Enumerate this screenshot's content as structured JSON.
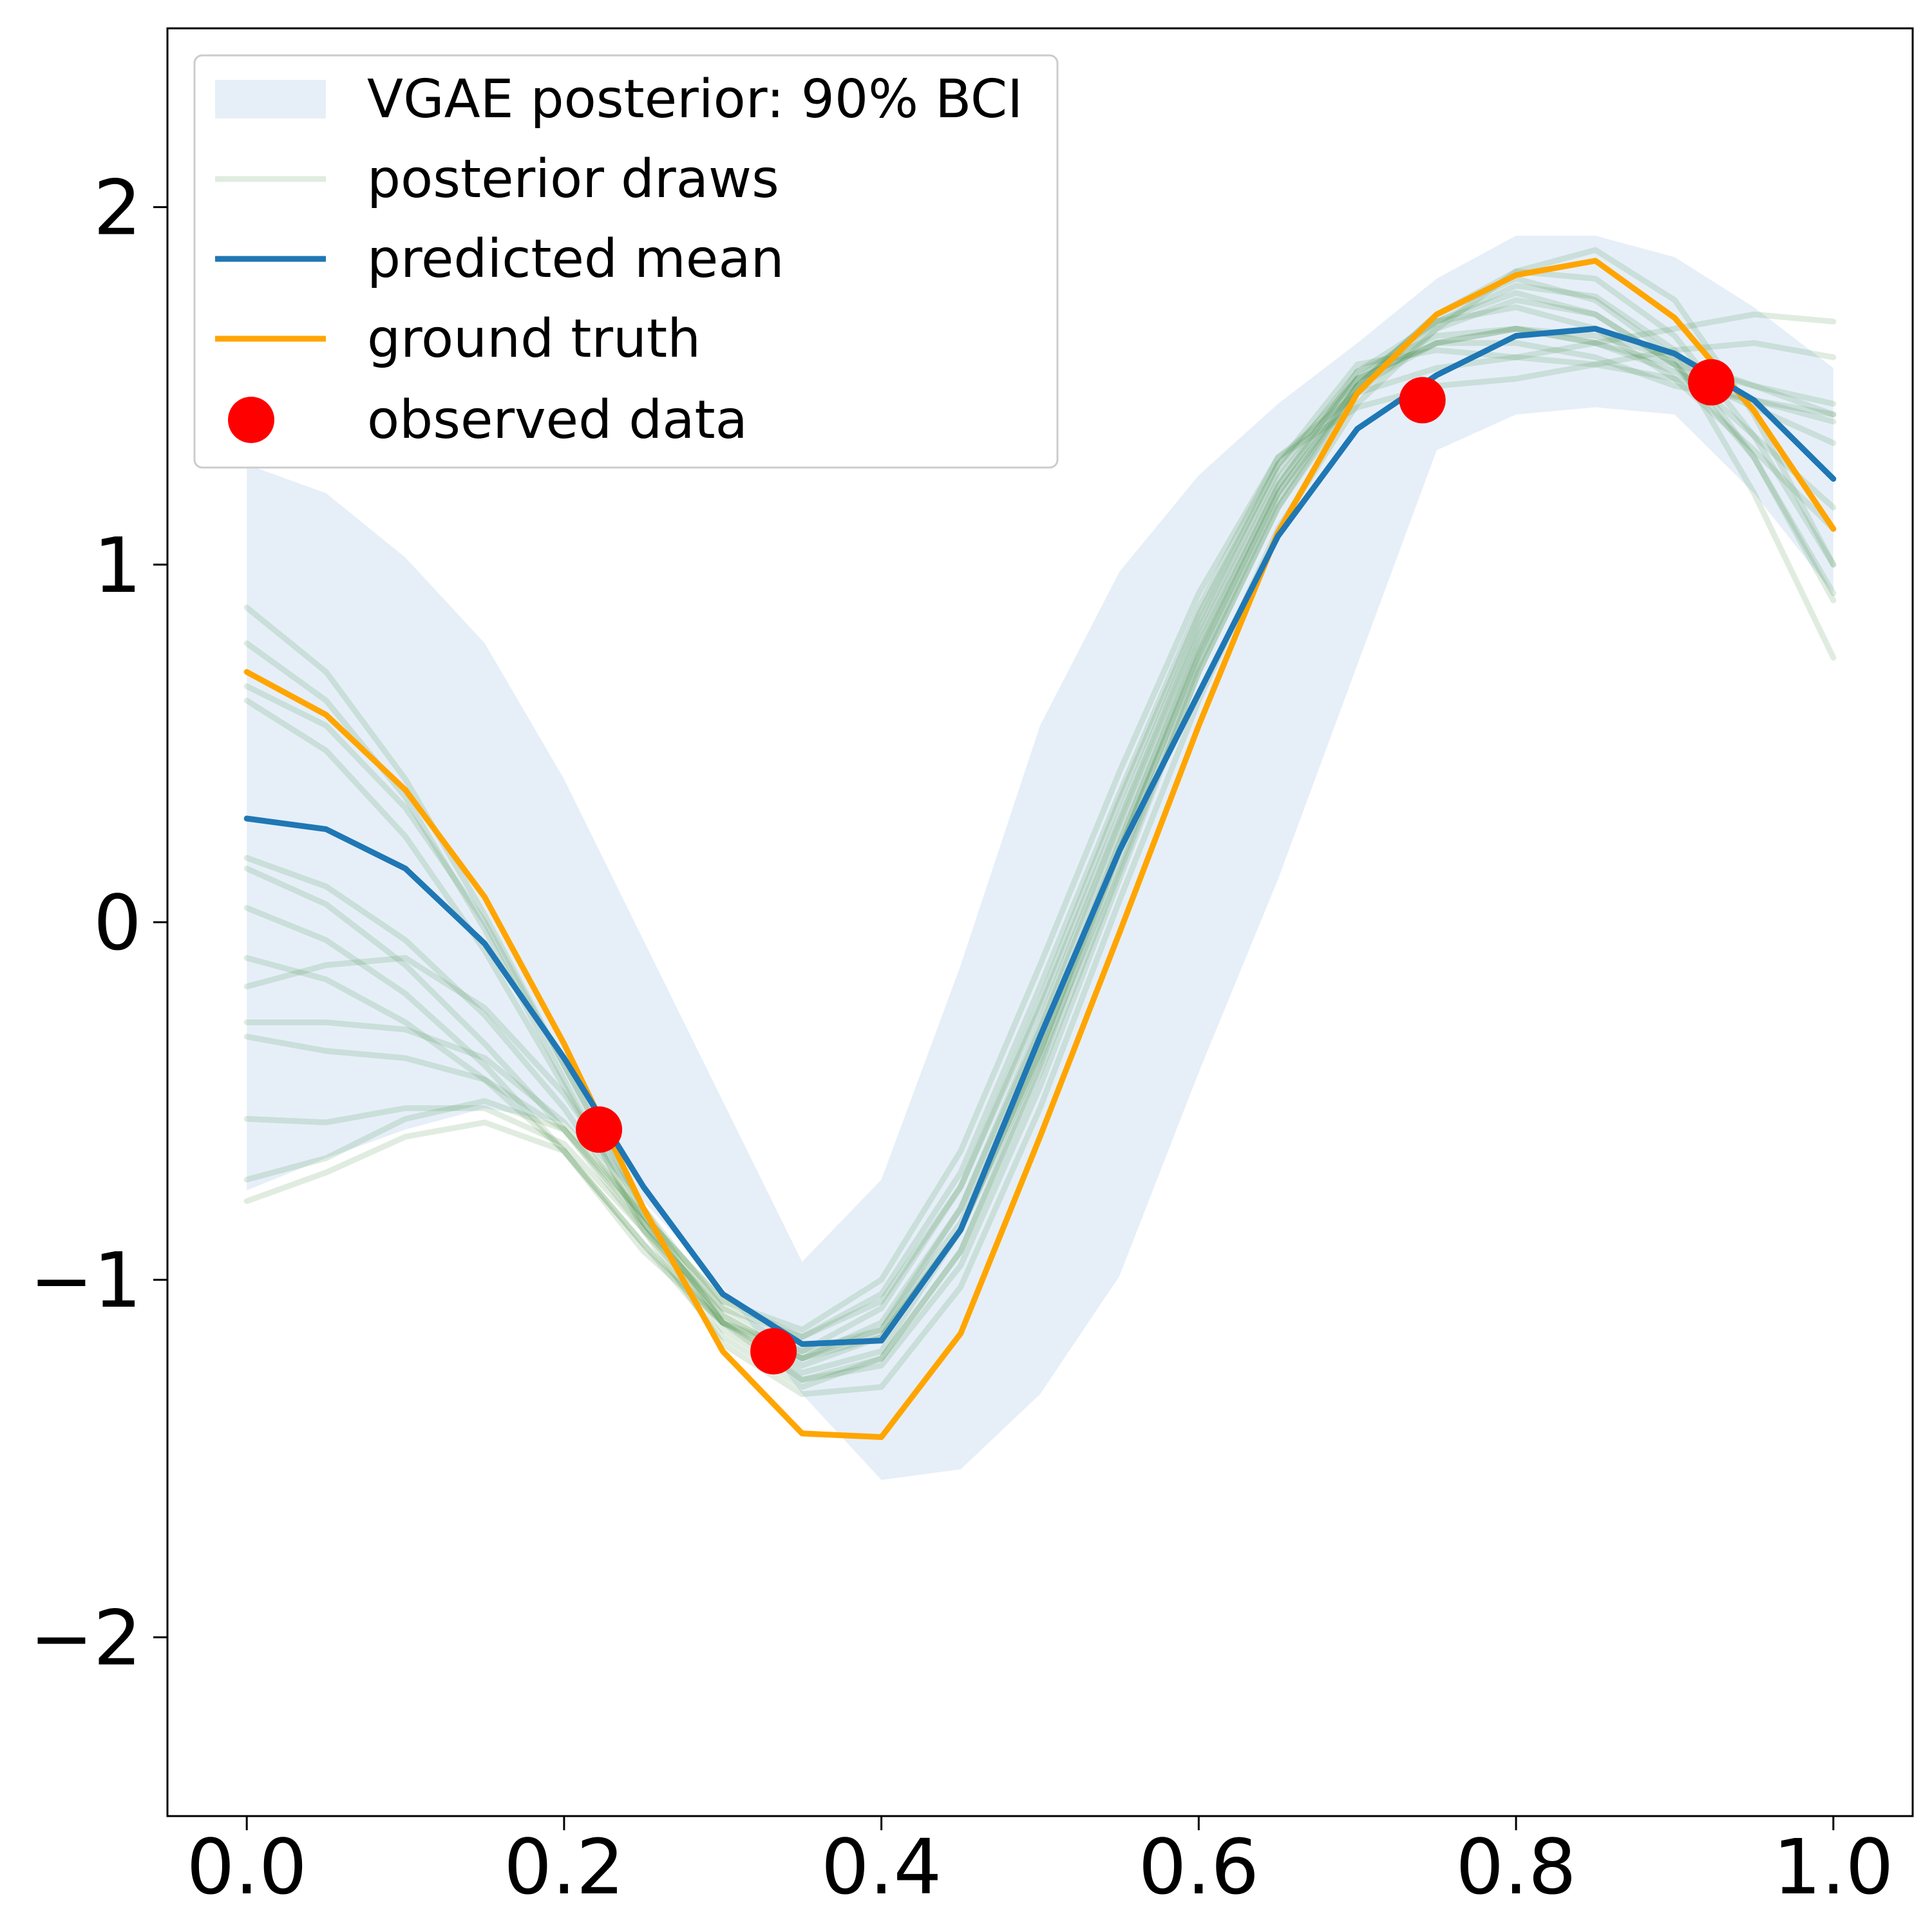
{
  "chart_data": {
    "type": "line",
    "title": "",
    "xlabel": "",
    "ylabel": "",
    "xlim": [
      -0.05,
      1.05
    ],
    "ylim": [
      -2.5,
      2.5
    ],
    "xticks": [
      0.0,
      0.2,
      0.4,
      0.6,
      0.8,
      1.0
    ],
    "xtick_labels": [
      "0.0",
      "0.2",
      "0.4",
      "0.6",
      "0.8",
      "1.0"
    ],
    "yticks": [
      -2,
      -1,
      0,
      1,
      2
    ],
    "ytick_labels": [
      "−2",
      "−1",
      "0",
      "1",
      "2"
    ],
    "grid": false,
    "legend": {
      "placement": "top-left",
      "entries": [
        {
          "label": "VGAE posterior: 90% BCI",
          "kind": "band"
        },
        {
          "label": "posterior draws",
          "kind": "line"
        },
        {
          "label": "predicted mean",
          "kind": "line"
        },
        {
          "label": "ground truth",
          "kind": "line"
        },
        {
          "label": "observed data",
          "kind": "marker"
        }
      ]
    },
    "colors": {
      "band": "#e6eff8",
      "draws": "#2e7d32",
      "mean": "#1f77b4",
      "truth": "#ffa500",
      "observed": "#ff0000"
    },
    "x": [
      0.0,
      0.05,
      0.1,
      0.15,
      0.2,
      0.25,
      0.3,
      0.35,
      0.4,
      0.45,
      0.5,
      0.55,
      0.6,
      0.65,
      0.7,
      0.75,
      0.8,
      0.85,
      0.9,
      0.95,
      1.0
    ],
    "band": {
      "name": "VGAE posterior: 90% BCI",
      "lower": [
        -0.75,
        -0.66,
        -0.58,
        -0.52,
        -0.56,
        -0.78,
        -1.02,
        -1.32,
        -1.56,
        -1.53,
        -1.32,
        -0.99,
        -0.42,
        0.12,
        0.72,
        1.32,
        1.42,
        1.44,
        1.42,
        1.2,
        0.92
      ],
      "upper": [
        1.28,
        1.2,
        1.02,
        0.78,
        0.4,
        -0.05,
        -0.5,
        -0.95,
        -0.72,
        -0.12,
        0.55,
        0.98,
        1.25,
        1.45,
        1.62,
        1.8,
        1.92,
        1.92,
        1.86,
        1.72,
        1.55
      ]
    },
    "series": [
      {
        "name": "predicted mean",
        "values": [
          0.29,
          0.26,
          0.15,
          -0.06,
          -0.38,
          -0.74,
          -1.04,
          -1.18,
          -1.17,
          -0.86,
          -0.32,
          0.2,
          0.64,
          1.08,
          1.38,
          1.53,
          1.64,
          1.66,
          1.59,
          1.46,
          1.24
        ]
      },
      {
        "name": "ground truth",
        "values": [
          0.7,
          0.58,
          0.37,
          0.07,
          -0.34,
          -0.8,
          -1.2,
          -1.43,
          -1.44,
          -1.15,
          -0.6,
          -0.03,
          0.55,
          1.09,
          1.48,
          1.7,
          1.81,
          1.85,
          1.69,
          1.43,
          1.1
        ]
      }
    ],
    "draws": [
      [
        0.88,
        0.7,
        0.4,
        0.02,
        -0.4,
        -0.82,
        -1.12,
        -1.28,
        -1.22,
        -0.92,
        -0.4,
        0.2,
        0.75,
        1.2,
        1.5,
        1.68,
        1.78,
        1.75,
        1.6,
        1.3,
        0.9
      ],
      [
        0.78,
        0.62,
        0.35,
        -0.02,
        -0.44,
        -0.86,
        -1.18,
        -1.32,
        -1.3,
        -1.02,
        -0.52,
        0.06,
        0.62,
        1.1,
        1.45,
        1.66,
        1.82,
        1.88,
        1.74,
        1.42,
        1.0
      ],
      [
        0.66,
        0.55,
        0.32,
        0.0,
        -0.4,
        -0.8,
        -1.12,
        -1.26,
        -1.2,
        -0.86,
        -0.36,
        0.22,
        0.78,
        1.22,
        1.52,
        1.62,
        1.62,
        1.58,
        1.5,
        1.46,
        1.42
      ],
      [
        0.62,
        0.48,
        0.24,
        -0.08,
        -0.46,
        -0.84,
        -1.14,
        -1.28,
        -1.24,
        -0.96,
        -0.46,
        0.12,
        0.7,
        1.16,
        1.5,
        1.7,
        1.8,
        1.74,
        1.58,
        1.2,
        0.74
      ],
      [
        0.18,
        0.1,
        -0.05,
        -0.26,
        -0.52,
        -0.84,
        -1.1,
        -1.22,
        -1.14,
        -0.8,
        -0.28,
        0.28,
        0.82,
        1.26,
        1.54,
        1.64,
        1.66,
        1.62,
        1.56,
        1.5,
        1.45
      ],
      [
        0.15,
        0.05,
        -0.12,
        -0.34,
        -0.58,
        -0.86,
        -1.08,
        -1.16,
        -1.04,
        -0.7,
        -0.18,
        0.36,
        0.88,
        1.3,
        1.48,
        1.55,
        1.58,
        1.62,
        1.66,
        1.7,
        1.68
      ],
      [
        0.04,
        -0.05,
        -0.2,
        -0.4,
        -0.64,
        -0.92,
        -1.12,
        -1.2,
        -1.08,
        -0.74,
        -0.24,
        0.3,
        0.84,
        1.28,
        1.56,
        1.6,
        1.58,
        1.56,
        1.52,
        1.46,
        1.4
      ],
      [
        -0.18,
        -0.12,
        -0.1,
        -0.24,
        -0.48,
        -0.8,
        -1.08,
        -1.2,
        -1.14,
        -0.84,
        -0.34,
        0.22,
        0.76,
        1.22,
        1.54,
        1.68,
        1.72,
        1.66,
        1.52,
        1.32,
        1.1
      ],
      [
        -0.28,
        -0.28,
        -0.3,
        -0.38,
        -0.56,
        -0.82,
        -1.06,
        -1.14,
        -1.0,
        -0.64,
        -0.12,
        0.42,
        0.92,
        1.3,
        1.44,
        1.5,
        1.52,
        1.56,
        1.6,
        1.62,
        1.58
      ],
      [
        -0.32,
        -0.36,
        -0.38,
        -0.44,
        -0.58,
        -0.84,
        -1.1,
        -1.22,
        -1.12,
        -0.8,
        -0.3,
        0.26,
        0.8,
        1.24,
        1.52,
        1.68,
        1.76,
        1.7,
        1.56,
        1.3,
        0.92
      ],
      [
        -0.55,
        -0.56,
        -0.52,
        -0.52,
        -0.62,
        -0.86,
        -1.12,
        -1.24,
        -1.16,
        -0.86,
        -0.38,
        0.16,
        0.72,
        1.18,
        1.5,
        1.7,
        1.82,
        1.8,
        1.64,
        1.36,
        1.0
      ],
      [
        -0.72,
        -0.66,
        -0.55,
        -0.5,
        -0.58,
        -0.82,
        -1.06,
        -1.16,
        -1.06,
        -0.74,
        -0.22,
        0.34,
        0.86,
        1.28,
        1.52,
        1.62,
        1.66,
        1.64,
        1.58,
        1.5,
        1.42
      ],
      [
        -0.78,
        -0.7,
        -0.6,
        -0.56,
        -0.64,
        -0.9,
        -1.16,
        -1.3,
        -1.22,
        -0.92,
        -0.42,
        0.14,
        0.7,
        1.16,
        1.48,
        1.66,
        1.74,
        1.7,
        1.56,
        1.36,
        1.16
      ],
      [
        -0.1,
        -0.16,
        -0.28,
        -0.44,
        -0.64,
        -0.9,
        -1.12,
        -1.22,
        -1.16,
        -0.86,
        -0.36,
        0.2,
        0.74,
        1.2,
        1.5,
        1.62,
        1.66,
        1.62,
        1.54,
        1.44,
        1.34
      ]
    ],
    "observed": {
      "name": "observed data",
      "points": [
        {
          "x": 0.222,
          "y": -0.58
        },
        {
          "x": 0.332,
          "y": -1.2
        },
        {
          "x": 0.741,
          "y": 1.46
        },
        {
          "x": 0.923,
          "y": 1.51
        }
      ]
    }
  }
}
